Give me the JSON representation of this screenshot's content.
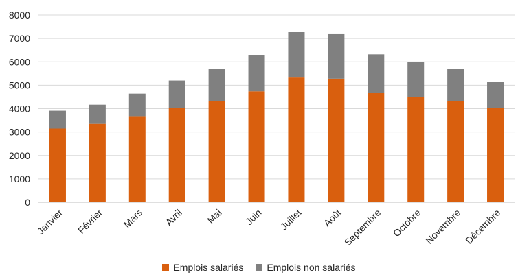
{
  "chart_data": {
    "type": "bar",
    "stacked": true,
    "title": "",
    "xlabel": "",
    "ylabel": "",
    "ylim": [
      0,
      8000
    ],
    "yticks": [
      0,
      1000,
      2000,
      3000,
      4000,
      5000,
      6000,
      7000,
      8000
    ],
    "grid": true,
    "legend_position": "bottom",
    "categories": [
      "Janvier",
      "Février",
      "Mars",
      "Avril",
      "Mai",
      "Juin",
      "Juillet",
      "Août",
      "Septembre",
      "Octobre",
      "Novembre",
      "Décembre"
    ],
    "series": [
      {
        "name": "Emplois salariés",
        "color": "#d95f0e",
        "values": [
          3150,
          3350,
          3680,
          4020,
          4330,
          4740,
          5330,
          5280,
          4660,
          4490,
          4330,
          4020
        ]
      },
      {
        "name": "Emplois non salariés",
        "color": "#808080",
        "values": [
          760,
          820,
          960,
          1180,
          1370,
          1560,
          1960,
          1930,
          1660,
          1500,
          1380,
          1130
        ]
      }
    ]
  }
}
